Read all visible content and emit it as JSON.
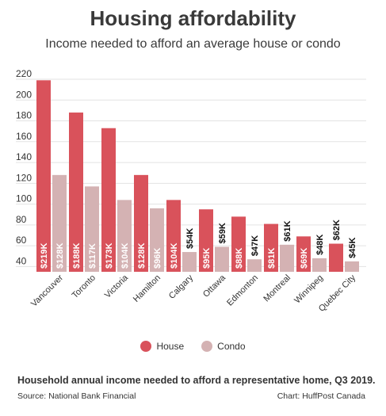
{
  "chart_data": {
    "type": "bar",
    "title": "Housing affordability",
    "subtitle": "Income needed to afford an average house or condo",
    "categories": [
      "Vancouver",
      "Toronto",
      "Victoria",
      "Hamilton",
      "Calgary",
      "Ottawa",
      "Edmonton",
      "Montreal",
      "Winnipeg",
      "Quebec City"
    ],
    "series": [
      {
        "name": "House",
        "color": "#d9525b",
        "values": [
          219,
          188,
          173,
          128,
          104,
          95,
          88,
          81,
          69,
          62
        ],
        "labels": [
          "$219K",
          "$188K",
          "$173K",
          "$128K",
          "$104K",
          "$95K",
          "$88K",
          "$81K",
          "$69K",
          "$62K"
        ]
      },
      {
        "name": "Condo",
        "color": "#d4b2b3",
        "values": [
          128,
          117,
          104,
          96,
          54,
          59,
          47,
          61,
          48,
          45
        ],
        "labels": [
          "$128K",
          "$117K",
          "$104K",
          "$96K",
          "$54K",
          "$59K",
          "$47K",
          "$61K",
          "$48K",
          "$45K"
        ]
      }
    ],
    "yticks": [
      40,
      60,
      80,
      100,
      120,
      140,
      160,
      180,
      200,
      220
    ],
    "ylim": [
      35,
      220
    ],
    "grid": true,
    "legend_position": "bottom"
  },
  "footer": {
    "note": "Household annual income needed to afford a representative home, Q3 2019.",
    "source": "Source: National Bank Financial",
    "credit": "Chart: HuffPost Canada"
  }
}
